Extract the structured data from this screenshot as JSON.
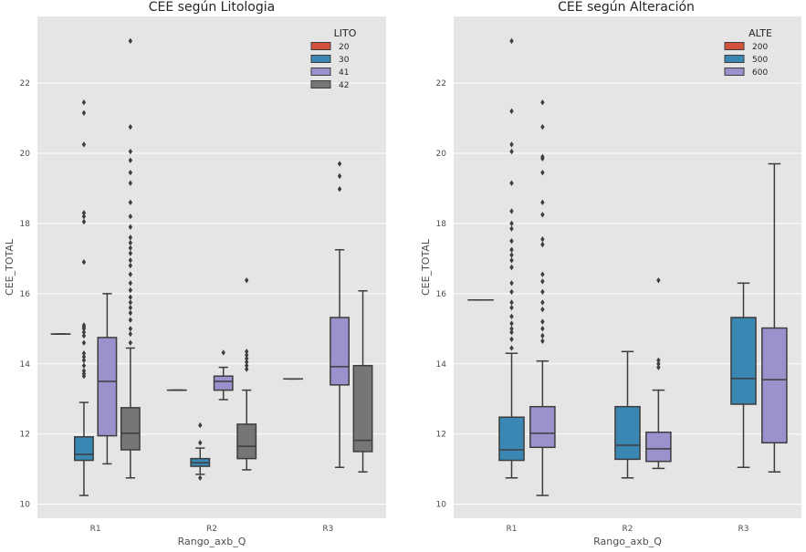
{
  "chart_data": [
    {
      "type": "box",
      "title": "CEE según Litologia",
      "xlabel": "Rango_axb_Q",
      "ylabel": "CEE_TOTAL",
      "categories": [
        "R1",
        "R2",
        "R3"
      ],
      "ylim": [
        9.6,
        23.9
      ],
      "yticks": [
        10,
        12,
        14,
        16,
        18,
        20,
        22
      ],
      "grid": true,
      "legend": {
        "title": "LITO",
        "position": "top-right",
        "entries": [
          "20",
          "30",
          "41",
          "42"
        ]
      },
      "series": [
        {
          "name": "20",
          "color": "#d2523d",
          "boxes": [
            {
              "category": "R1",
              "q1": 14.85,
              "median": 14.85,
              "q3": 14.85,
              "low": 14.85,
              "high": 14.85,
              "outliers": []
            },
            {
              "category": "R2",
              "q1": 13.25,
              "median": 13.25,
              "q3": 13.25,
              "low": 13.25,
              "high": 13.25,
              "outliers": []
            },
            {
              "category": "R3",
              "q1": 13.57,
              "median": 13.57,
              "q3": 13.57,
              "low": 13.57,
              "high": 13.57,
              "outliers": []
            }
          ]
        },
        {
          "name": "30",
          "color": "#3a87b4",
          "boxes": [
            {
              "category": "R1",
              "q1": 11.25,
              "median": 11.42,
              "q3": 11.92,
              "low": 10.25,
              "high": 12.9,
              "outliers": [
                13.65,
                13.72,
                13.8,
                13.95,
                14.1,
                14.2,
                14.3,
                14.6,
                14.8,
                14.9,
                15.0,
                15.05,
                15.1,
                16.9,
                18.05,
                18.2,
                18.3,
                20.25,
                21.15,
                21.45
              ]
            },
            {
              "category": "R2",
              "q1": 11.08,
              "median": 11.18,
              "q3": 11.3,
              "low": 10.85,
              "high": 11.6,
              "outliers": [
                10.75,
                11.75,
                12.25
              ]
            }
          ]
        },
        {
          "name": "41",
          "color": "#9c91cc",
          "boxes": [
            {
              "category": "R1",
              "q1": 11.95,
              "median": 13.5,
              "q3": 14.75,
              "low": 11.15,
              "high": 16.0,
              "outliers": []
            },
            {
              "category": "R2",
              "q1": 13.25,
              "median": 13.5,
              "q3": 13.65,
              "low": 12.98,
              "high": 13.9,
              "outliers": [
                14.32
              ]
            },
            {
              "category": "R3",
              "q1": 13.4,
              "median": 13.92,
              "q3": 15.32,
              "low": 11.05,
              "high": 17.25,
              "outliers": [
                18.98,
                19.35,
                19.7
              ]
            }
          ]
        },
        {
          "name": "42",
          "color": "#767676",
          "boxes": [
            {
              "category": "R1",
              "q1": 11.55,
              "median": 12.02,
              "q3": 12.75,
              "low": 10.75,
              "high": 14.45,
              "outliers": [
                14.6,
                14.85,
                15.0,
                15.25,
                15.45,
                15.6,
                15.75,
                15.9,
                16.1,
                16.3,
                16.55,
                16.8,
                16.95,
                17.15,
                17.3,
                17.45,
                17.6,
                17.9,
                18.2,
                18.6,
                19.15,
                19.45,
                19.8,
                20.05,
                20.75,
                23.2
              ]
            },
            {
              "category": "R2",
              "q1": 11.3,
              "median": 11.65,
              "q3": 12.28,
              "low": 10.98,
              "high": 13.25,
              "outliers": [
                13.85,
                13.95,
                14.05,
                14.15,
                14.25,
                14.35,
                16.38
              ]
            },
            {
              "category": "R3",
              "q1": 11.5,
              "median": 11.82,
              "q3": 13.95,
              "low": 10.92,
              "high": 16.08,
              "outliers": []
            }
          ]
        }
      ]
    },
    {
      "type": "box",
      "title": "CEE según Alteración",
      "xlabel": "Rango_axb_Q",
      "ylabel": "CEE_TOTAL",
      "categories": [
        "R1",
        "R2",
        "R3"
      ],
      "ylim": [
        9.6,
        23.9
      ],
      "yticks": [
        10,
        12,
        14,
        16,
        18,
        20,
        22
      ],
      "grid": true,
      "legend": {
        "title": "ALTE",
        "position": "top-right",
        "entries": [
          "200",
          "500",
          "600"
        ]
      },
      "series": [
        {
          "name": "200",
          "color": "#d2523d",
          "boxes": [
            {
              "category": "R1",
              "q1": 15.82,
              "median": 15.82,
              "q3": 15.82,
              "low": 15.82,
              "high": 15.82,
              "outliers": []
            }
          ]
        },
        {
          "name": "500",
          "color": "#3a87b4",
          "boxes": [
            {
              "category": "R1",
              "q1": 11.25,
              "median": 11.55,
              "q3": 12.48,
              "low": 10.75,
              "high": 14.3,
              "outliers": [
                14.45,
                14.7,
                14.9,
                15.0,
                15.15,
                15.35,
                15.6,
                15.75,
                16.05,
                16.3,
                16.75,
                16.95,
                17.1,
                17.25,
                17.5,
                17.85,
                18.0,
                18.35,
                19.15,
                20.05,
                20.25,
                21.2,
                23.2
              ]
            },
            {
              "category": "R2",
              "q1": 11.28,
              "median": 11.68,
              "q3": 12.78,
              "low": 10.75,
              "high": 14.35,
              "outliers": []
            },
            {
              "category": "R3",
              "q1": 12.85,
              "median": 13.58,
              "q3": 15.32,
              "low": 11.05,
              "high": 16.3,
              "outliers": []
            }
          ]
        },
        {
          "name": "600",
          "color": "#9c91cc",
          "boxes": [
            {
              "category": "R1",
              "q1": 11.62,
              "median": 12.02,
              "q3": 12.78,
              "low": 10.25,
              "high": 14.08,
              "outliers": [
                14.65,
                14.8,
                15.0,
                15.2,
                15.55,
                15.75,
                16.05,
                16.35,
                16.55,
                17.4,
                17.55,
                18.25,
                18.6,
                19.45,
                19.85,
                19.9,
                20.75,
                21.45
              ]
            },
            {
              "category": "R2",
              "q1": 11.22,
              "median": 11.58,
              "q3": 12.05,
              "low": 11.02,
              "high": 13.25,
              "outliers": [
                13.9,
                14.0,
                14.1,
                16.38
              ]
            },
            {
              "category": "R3",
              "q1": 11.75,
              "median": 13.55,
              "q3": 15.02,
              "low": 10.92,
              "high": 19.7,
              "outliers": []
            }
          ]
        }
      ]
    }
  ]
}
